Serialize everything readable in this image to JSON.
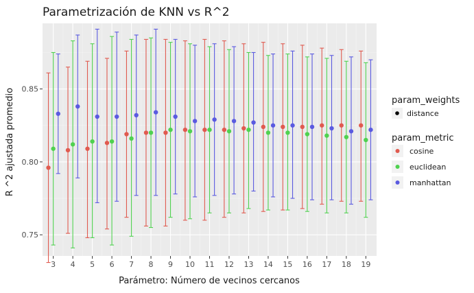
{
  "chart_data": {
    "type": "scatter",
    "title": "Parametrización de KNN vs R^2",
    "xlabel": "Parámetro: Número de vecinos cercanos",
    "ylabel": "R ^2 ajustada promedio",
    "x": [
      3,
      4,
      5,
      6,
      7,
      8,
      9,
      10,
      11,
      12,
      13,
      14,
      15,
      16,
      17,
      18,
      19
    ],
    "xlim": [
      2.45,
      19.55
    ],
    "ylim": [
      0.7355,
      0.895
    ],
    "yticks": [
      0.75,
      0.8,
      0.85
    ],
    "ytick_labels": [
      "0.75",
      "0.80",
      "0.85"
    ],
    "grid": true,
    "legend_position": "right",
    "legend": {
      "weights_title": "param_weights",
      "weights_items": [
        {
          "label": "distance",
          "color": "#000000"
        }
      ],
      "metric_title": "param_metric",
      "metric_items": [
        {
          "label": "cosine",
          "color": "#e05a4f"
        },
        {
          "label": "euclidean",
          "color": "#4fd14f"
        },
        {
          "label": "manhattan",
          "color": "#5a5ae0"
        }
      ]
    },
    "series": [
      {
        "name": "cosine",
        "color": "#e05a4f",
        "offset": -0.25,
        "mean": [
          0.796,
          0.808,
          0.809,
          0.813,
          0.819,
          0.82,
          0.82,
          0.822,
          0.822,
          0.822,
          0.823,
          0.824,
          0.824,
          0.824,
          0.825,
          0.825,
          0.825
        ],
        "upper": [
          0.861,
          0.865,
          0.869,
          0.871,
          0.876,
          0.884,
          0.884,
          0.883,
          0.884,
          0.883,
          0.881,
          0.882,
          0.881,
          0.88,
          0.878,
          0.877,
          0.876
        ],
        "lower": [
          0.731,
          0.751,
          0.748,
          0.754,
          0.762,
          0.756,
          0.756,
          0.76,
          0.76,
          0.762,
          0.765,
          0.766,
          0.767,
          0.768,
          0.771,
          0.773,
          0.773
        ]
      },
      {
        "name": "euclidean",
        "color": "#4fd14f",
        "offset": 0,
        "mean": [
          0.809,
          0.812,
          0.814,
          0.814,
          0.816,
          0.82,
          0.822,
          0.821,
          0.822,
          0.821,
          0.822,
          0.82,
          0.82,
          0.819,
          0.818,
          0.817,
          0.815
        ],
        "upper": [
          0.875,
          0.883,
          0.881,
          0.886,
          0.884,
          0.885,
          0.882,
          0.881,
          0.879,
          0.877,
          0.875,
          0.873,
          0.874,
          0.872,
          0.871,
          0.869,
          0.868
        ],
        "lower": [
          0.743,
          0.741,
          0.748,
          0.743,
          0.749,
          0.755,
          0.762,
          0.761,
          0.765,
          0.765,
          0.768,
          0.767,
          0.767,
          0.766,
          0.765,
          0.765,
          0.762
        ]
      },
      {
        "name": "manhattan",
        "color": "#5a5ae0",
        "offset": 0.25,
        "mean": [
          0.833,
          0.838,
          0.831,
          0.831,
          0.832,
          0.834,
          0.831,
          0.828,
          0.829,
          0.828,
          0.827,
          0.825,
          0.825,
          0.824,
          0.823,
          0.821,
          0.822
        ],
        "upper": [
          0.874,
          0.887,
          0.891,
          0.889,
          0.887,
          0.891,
          0.884,
          0.88,
          0.881,
          0.879,
          0.875,
          0.874,
          0.876,
          0.874,
          0.873,
          0.872,
          0.87
        ],
        "lower": [
          0.792,
          0.789,
          0.772,
          0.773,
          0.777,
          0.777,
          0.778,
          0.776,
          0.777,
          0.778,
          0.78,
          0.776,
          0.775,
          0.774,
          0.774,
          0.771,
          0.774
        ]
      }
    ]
  }
}
